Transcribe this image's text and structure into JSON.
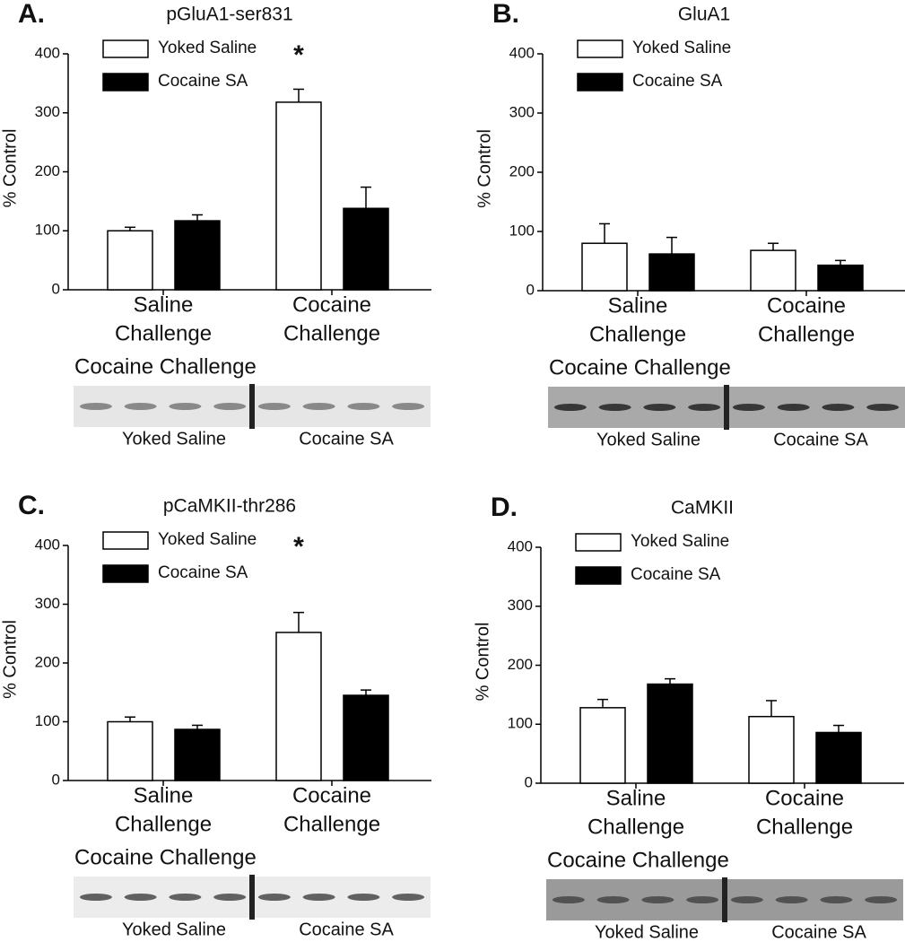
{
  "chart_data": [
    {
      "type": "bar",
      "panel": "A.",
      "title": "pGluA1-ser831",
      "ylabel": "% Control",
      "categories": [
        [
          "Saline",
          "Challenge"
        ],
        [
          "Cocaine",
          "Challenge"
        ]
      ],
      "series": [
        {
          "name": "Yoked Saline",
          "color": "#ffffff",
          "values": [
            100,
            318
          ],
          "errors": [
            6,
            22
          ]
        },
        {
          "name": "Cocaine SA",
          "color": "#000000",
          "values": [
            117,
            138
          ],
          "errors": [
            10,
            36
          ]
        }
      ],
      "ylim": [
        0,
        400
      ],
      "yticks": [
        0,
        100,
        200,
        300,
        400
      ],
      "annotation": "*",
      "blot_title": "Cocaine Challenge",
      "blot_labels": [
        "Yoked Saline",
        "Cocaine SA"
      ]
    },
    {
      "type": "bar",
      "panel": "B.",
      "title": "GluA1",
      "ylabel": "% Control",
      "categories": [
        [
          "Saline",
          "Challenge"
        ],
        [
          "Cocaine",
          "Challenge"
        ]
      ],
      "series": [
        {
          "name": "Yoked Saline",
          "color": "#ffffff",
          "values": [
            80,
            68
          ],
          "errors": [
            33,
            12
          ]
        },
        {
          "name": "Cocaine SA",
          "color": "#000000",
          "values": [
            62,
            43
          ],
          "errors": [
            28,
            8
          ]
        }
      ],
      "ylim": [
        0,
        400
      ],
      "yticks": [
        0,
        100,
        200,
        300,
        400
      ],
      "blot_title": "Cocaine Challenge",
      "blot_labels": [
        "Yoked Saline",
        "Cocaine SA"
      ]
    },
    {
      "type": "bar",
      "panel": "C.",
      "title": "pCaMKII-thr286",
      "ylabel": "% Control",
      "categories": [
        [
          "Saline",
          "Challenge"
        ],
        [
          "Cocaine",
          "Challenge"
        ]
      ],
      "series": [
        {
          "name": "Yoked Saline",
          "color": "#ffffff",
          "values": [
            100,
            252
          ],
          "errors": [
            8,
            34
          ]
        },
        {
          "name": "Cocaine SA",
          "color": "#000000",
          "values": [
            87,
            145
          ],
          "errors": [
            7,
            9
          ]
        }
      ],
      "ylim": [
        0,
        400
      ],
      "yticks": [
        0,
        100,
        200,
        300,
        400
      ],
      "annotation": "*",
      "blot_title": "Cocaine Challenge",
      "blot_labels": [
        "Yoked Saline",
        "Cocaine SA"
      ]
    },
    {
      "type": "bar",
      "panel": "D.",
      "title": "CaMKII",
      "ylabel": "% Control",
      "categories": [
        [
          "Saline",
          "Challenge"
        ],
        [
          "Cocaine",
          "Challenge"
        ]
      ],
      "series": [
        {
          "name": "Yoked Saline",
          "color": "#ffffff",
          "values": [
            128,
            113
          ],
          "errors": [
            14,
            27
          ]
        },
        {
          "name": "Cocaine SA",
          "color": "#000000",
          "values": [
            168,
            86
          ],
          "errors": [
            9,
            12
          ]
        }
      ],
      "ylim": [
        0,
        400
      ],
      "yticks": [
        0,
        100,
        200,
        300,
        400
      ],
      "blot_title": "Cocaine Challenge",
      "blot_labels": [
        "Yoked Saline",
        "Cocaine SA"
      ]
    }
  ]
}
